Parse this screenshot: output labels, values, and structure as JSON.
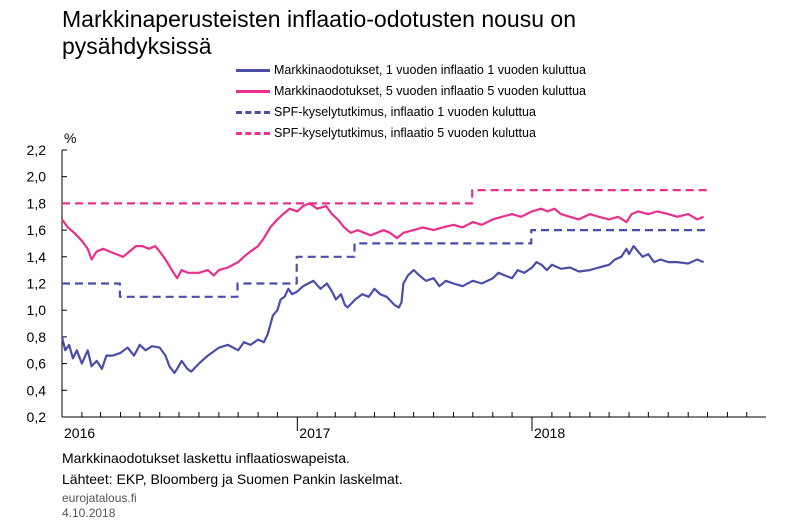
{
  "title": "Markkinaperusteisten inflaatio-odotusten nousu on pysähdyksissä",
  "chart_data": {
    "type": "line",
    "title": "Markkinaperusteisten inflaatio-odotusten nousu on pysähdyksissä",
    "ylabel": "%",
    "ylim": [
      0.2,
      2.2
    ],
    "yticks": [
      "0,2",
      "0,4",
      "0,6",
      "0,8",
      "1,0",
      "1,2",
      "1,4",
      "1,6",
      "1,8",
      "2,0",
      "2,2"
    ],
    "xlim": [
      "2016-01-01",
      "2018-12-31"
    ],
    "xticks": [
      "2016",
      "2017",
      "2018"
    ],
    "grid": false,
    "legend_position": "top",
    "series": [
      {
        "name": "Markkinaodotukset, 1 vuoden inflaatio 1 vuoden kuluttua",
        "color": "#4a4ea8",
        "style": "solid",
        "points": [
          [
            "2016-01-01",
            0.8
          ],
          [
            "2016-01-06",
            0.7
          ],
          [
            "2016-01-12",
            0.74
          ],
          [
            "2016-01-18",
            0.64
          ],
          [
            "2016-01-24",
            0.7
          ],
          [
            "2016-02-01",
            0.6
          ],
          [
            "2016-02-10",
            0.7
          ],
          [
            "2016-02-16",
            0.58
          ],
          [
            "2016-02-24",
            0.62
          ],
          [
            "2016-03-03",
            0.56
          ],
          [
            "2016-03-10",
            0.66
          ],
          [
            "2016-03-20",
            0.66
          ],
          [
            "2016-04-01",
            0.68
          ],
          [
            "2016-04-12",
            0.72
          ],
          [
            "2016-04-22",
            0.66
          ],
          [
            "2016-05-01",
            0.74
          ],
          [
            "2016-05-10",
            0.7
          ],
          [
            "2016-05-20",
            0.73
          ],
          [
            "2016-06-01",
            0.72
          ],
          [
            "2016-06-10",
            0.66
          ],
          [
            "2016-06-16",
            0.58
          ],
          [
            "2016-06-24",
            0.53
          ],
          [
            "2016-06-28",
            0.56
          ],
          [
            "2016-07-05",
            0.62
          ],
          [
            "2016-07-14",
            0.56
          ],
          [
            "2016-07-20",
            0.54
          ],
          [
            "2016-08-01",
            0.6
          ],
          [
            "2016-08-15",
            0.66
          ],
          [
            "2016-09-01",
            0.72
          ],
          [
            "2016-09-15",
            0.74
          ],
          [
            "2016-10-01",
            0.7
          ],
          [
            "2016-10-10",
            0.76
          ],
          [
            "2016-10-20",
            0.74
          ],
          [
            "2016-11-01",
            0.78
          ],
          [
            "2016-11-10",
            0.76
          ],
          [
            "2016-11-16",
            0.82
          ],
          [
            "2016-11-24",
            0.96
          ],
          [
            "2016-12-01",
            1.0
          ],
          [
            "2016-12-06",
            1.08
          ],
          [
            "2016-12-12",
            1.1
          ],
          [
            "2016-12-18",
            1.16
          ],
          [
            "2016-12-24",
            1.12
          ],
          [
            "2017-01-01",
            1.14
          ],
          [
            "2017-01-10",
            1.18
          ],
          [
            "2017-01-18",
            1.2
          ],
          [
            "2017-01-26",
            1.22
          ],
          [
            "2017-02-06",
            1.16
          ],
          [
            "2017-02-16",
            1.2
          ],
          [
            "2017-02-24",
            1.14
          ],
          [
            "2017-03-02",
            1.08
          ],
          [
            "2017-03-10",
            1.12
          ],
          [
            "2017-03-16",
            1.04
          ],
          [
            "2017-03-20",
            1.02
          ],
          [
            "2017-04-01",
            1.08
          ],
          [
            "2017-04-12",
            1.12
          ],
          [
            "2017-04-22",
            1.1
          ],
          [
            "2017-05-01",
            1.16
          ],
          [
            "2017-05-10",
            1.12
          ],
          [
            "2017-05-20",
            1.1
          ],
          [
            "2017-06-01",
            1.04
          ],
          [
            "2017-06-08",
            1.02
          ],
          [
            "2017-06-12",
            1.06
          ],
          [
            "2017-06-15",
            1.2
          ],
          [
            "2017-06-22",
            1.26
          ],
          [
            "2017-07-01",
            1.3
          ],
          [
            "2017-07-10",
            1.26
          ],
          [
            "2017-07-20",
            1.22
          ],
          [
            "2017-08-01",
            1.24
          ],
          [
            "2017-08-10",
            1.18
          ],
          [
            "2017-08-20",
            1.22
          ],
          [
            "2017-09-01",
            1.2
          ],
          [
            "2017-09-15",
            1.18
          ],
          [
            "2017-10-01",
            1.22
          ],
          [
            "2017-10-15",
            1.2
          ],
          [
            "2017-11-01",
            1.24
          ],
          [
            "2017-11-10",
            1.28
          ],
          [
            "2017-11-20",
            1.26
          ],
          [
            "2017-12-01",
            1.24
          ],
          [
            "2017-12-10",
            1.3
          ],
          [
            "2017-12-20",
            1.28
          ],
          [
            "2018-01-01",
            1.32
          ],
          [
            "2018-01-08",
            1.36
          ],
          [
            "2018-01-16",
            1.34
          ],
          [
            "2018-01-24",
            1.3
          ],
          [
            "2018-02-01",
            1.34
          ],
          [
            "2018-02-15",
            1.31
          ],
          [
            "2018-03-01",
            1.32
          ],
          [
            "2018-03-15",
            1.29
          ],
          [
            "2018-04-01",
            1.3
          ],
          [
            "2018-04-15",
            1.32
          ],
          [
            "2018-05-01",
            1.34
          ],
          [
            "2018-05-10",
            1.38
          ],
          [
            "2018-05-20",
            1.4
          ],
          [
            "2018-05-28",
            1.46
          ],
          [
            "2018-06-01",
            1.42
          ],
          [
            "2018-06-08",
            1.48
          ],
          [
            "2018-06-15",
            1.44
          ],
          [
            "2018-06-22",
            1.4
          ],
          [
            "2018-07-01",
            1.42
          ],
          [
            "2018-07-10",
            1.36
          ],
          [
            "2018-07-20",
            1.38
          ],
          [
            "2018-08-01",
            1.36
          ],
          [
            "2018-08-15",
            1.36
          ],
          [
            "2018-09-01",
            1.35
          ],
          [
            "2018-09-15",
            1.38
          ],
          [
            "2018-09-25",
            1.36
          ]
        ]
      },
      {
        "name": "Markkinaodotukset, 5 vuoden inflaatio 5 vuoden kuluttua",
        "color": "#e8308c",
        "style": "solid",
        "points": [
          [
            "2016-01-01",
            1.68
          ],
          [
            "2016-01-10",
            1.62
          ],
          [
            "2016-01-20",
            1.58
          ],
          [
            "2016-02-01",
            1.52
          ],
          [
            "2016-02-10",
            1.46
          ],
          [
            "2016-02-16",
            1.38
          ],
          [
            "2016-02-24",
            1.44
          ],
          [
            "2016-03-05",
            1.46
          ],
          [
            "2016-03-15",
            1.44
          ],
          [
            "2016-03-25",
            1.42
          ],
          [
            "2016-04-05",
            1.4
          ],
          [
            "2016-04-15",
            1.44
          ],
          [
            "2016-04-25",
            1.48
          ],
          [
            "2016-05-05",
            1.48
          ],
          [
            "2016-05-15",
            1.46
          ],
          [
            "2016-05-25",
            1.48
          ],
          [
            "2016-06-01",
            1.44
          ],
          [
            "2016-06-10",
            1.38
          ],
          [
            "2016-06-20",
            1.3
          ],
          [
            "2016-06-28",
            1.24
          ],
          [
            "2016-07-05",
            1.3
          ],
          [
            "2016-07-15",
            1.28
          ],
          [
            "2016-08-01",
            1.28
          ],
          [
            "2016-08-15",
            1.3
          ],
          [
            "2016-08-24",
            1.26
          ],
          [
            "2016-09-01",
            1.3
          ],
          [
            "2016-09-15",
            1.32
          ],
          [
            "2016-10-01",
            1.36
          ],
          [
            "2016-10-10",
            1.4
          ],
          [
            "2016-10-20",
            1.44
          ],
          [
            "2016-11-01",
            1.48
          ],
          [
            "2016-11-10",
            1.54
          ],
          [
            "2016-11-20",
            1.62
          ],
          [
            "2016-12-01",
            1.68
          ],
          [
            "2016-12-10",
            1.72
          ],
          [
            "2016-12-20",
            1.76
          ],
          [
            "2017-01-01",
            1.74
          ],
          [
            "2017-01-10",
            1.78
          ],
          [
            "2017-01-20",
            1.8
          ],
          [
            "2017-02-01",
            1.76
          ],
          [
            "2017-02-15",
            1.78
          ],
          [
            "2017-02-24",
            1.72
          ],
          [
            "2017-03-05",
            1.68
          ],
          [
            "2017-03-15",
            1.62
          ],
          [
            "2017-03-25",
            1.58
          ],
          [
            "2017-04-05",
            1.6
          ],
          [
            "2017-04-15",
            1.58
          ],
          [
            "2017-04-25",
            1.56
          ],
          [
            "2017-05-05",
            1.58
          ],
          [
            "2017-05-15",
            1.6
          ],
          [
            "2017-05-25",
            1.58
          ],
          [
            "2017-06-05",
            1.54
          ],
          [
            "2017-06-15",
            1.58
          ],
          [
            "2017-07-01",
            1.6
          ],
          [
            "2017-07-15",
            1.62
          ],
          [
            "2017-08-01",
            1.6
          ],
          [
            "2017-08-15",
            1.62
          ],
          [
            "2017-09-01",
            1.64
          ],
          [
            "2017-09-15",
            1.62
          ],
          [
            "2017-10-01",
            1.66
          ],
          [
            "2017-10-15",
            1.64
          ],
          [
            "2017-11-01",
            1.68
          ],
          [
            "2017-11-15",
            1.7
          ],
          [
            "2017-12-01",
            1.72
          ],
          [
            "2017-12-15",
            1.7
          ],
          [
            "2018-01-01",
            1.74
          ],
          [
            "2018-01-15",
            1.76
          ],
          [
            "2018-01-25",
            1.74
          ],
          [
            "2018-02-05",
            1.76
          ],
          [
            "2018-02-15",
            1.72
          ],
          [
            "2018-03-01",
            1.7
          ],
          [
            "2018-03-15",
            1.68
          ],
          [
            "2018-04-01",
            1.72
          ],
          [
            "2018-04-15",
            1.7
          ],
          [
            "2018-05-01",
            1.68
          ],
          [
            "2018-05-15",
            1.7
          ],
          [
            "2018-05-28",
            1.66
          ],
          [
            "2018-06-05",
            1.72
          ],
          [
            "2018-06-15",
            1.74
          ],
          [
            "2018-07-01",
            1.72
          ],
          [
            "2018-07-15",
            1.74
          ],
          [
            "2018-08-01",
            1.72
          ],
          [
            "2018-08-15",
            1.7
          ],
          [
            "2018-09-01",
            1.72
          ],
          [
            "2018-09-15",
            1.68
          ],
          [
            "2018-09-25",
            1.7
          ]
        ]
      },
      {
        "name": "SPF-kyselytutkimus, inflaatio 1 vuoden kuluttua",
        "color": "#4a4ea8",
        "style": "dashed",
        "points": [
          [
            "2016-01-01",
            1.2
          ],
          [
            "2016-03-31",
            1.2
          ],
          [
            "2016-03-31",
            1.1
          ],
          [
            "2016-09-30",
            1.1
          ],
          [
            "2016-09-30",
            1.2
          ],
          [
            "2016-12-31",
            1.2
          ],
          [
            "2016-12-31",
            1.4
          ],
          [
            "2017-03-31",
            1.4
          ],
          [
            "2017-03-31",
            1.5
          ],
          [
            "2017-12-31",
            1.5
          ],
          [
            "2017-12-31",
            1.6
          ],
          [
            "2018-09-30",
            1.6
          ]
        ]
      },
      {
        "name": "SPF-kyselytutkimus, inflaatio 5 vuoden kuluttua",
        "color": "#e8308c",
        "style": "dashed",
        "points": [
          [
            "2016-01-01",
            1.8
          ],
          [
            "2017-09-30",
            1.8
          ],
          [
            "2017-09-30",
            1.9
          ],
          [
            "2018-09-30",
            1.9
          ]
        ]
      }
    ]
  },
  "footer": {
    "note": "Markkinaodotukset laskettu inflaatioswapeista.",
    "sources": "Lähteet: EKP, Bloomberg ja Suomen Pankin laskelmat.",
    "site": "eurojatalous.fi",
    "date": "4.10.2018"
  }
}
